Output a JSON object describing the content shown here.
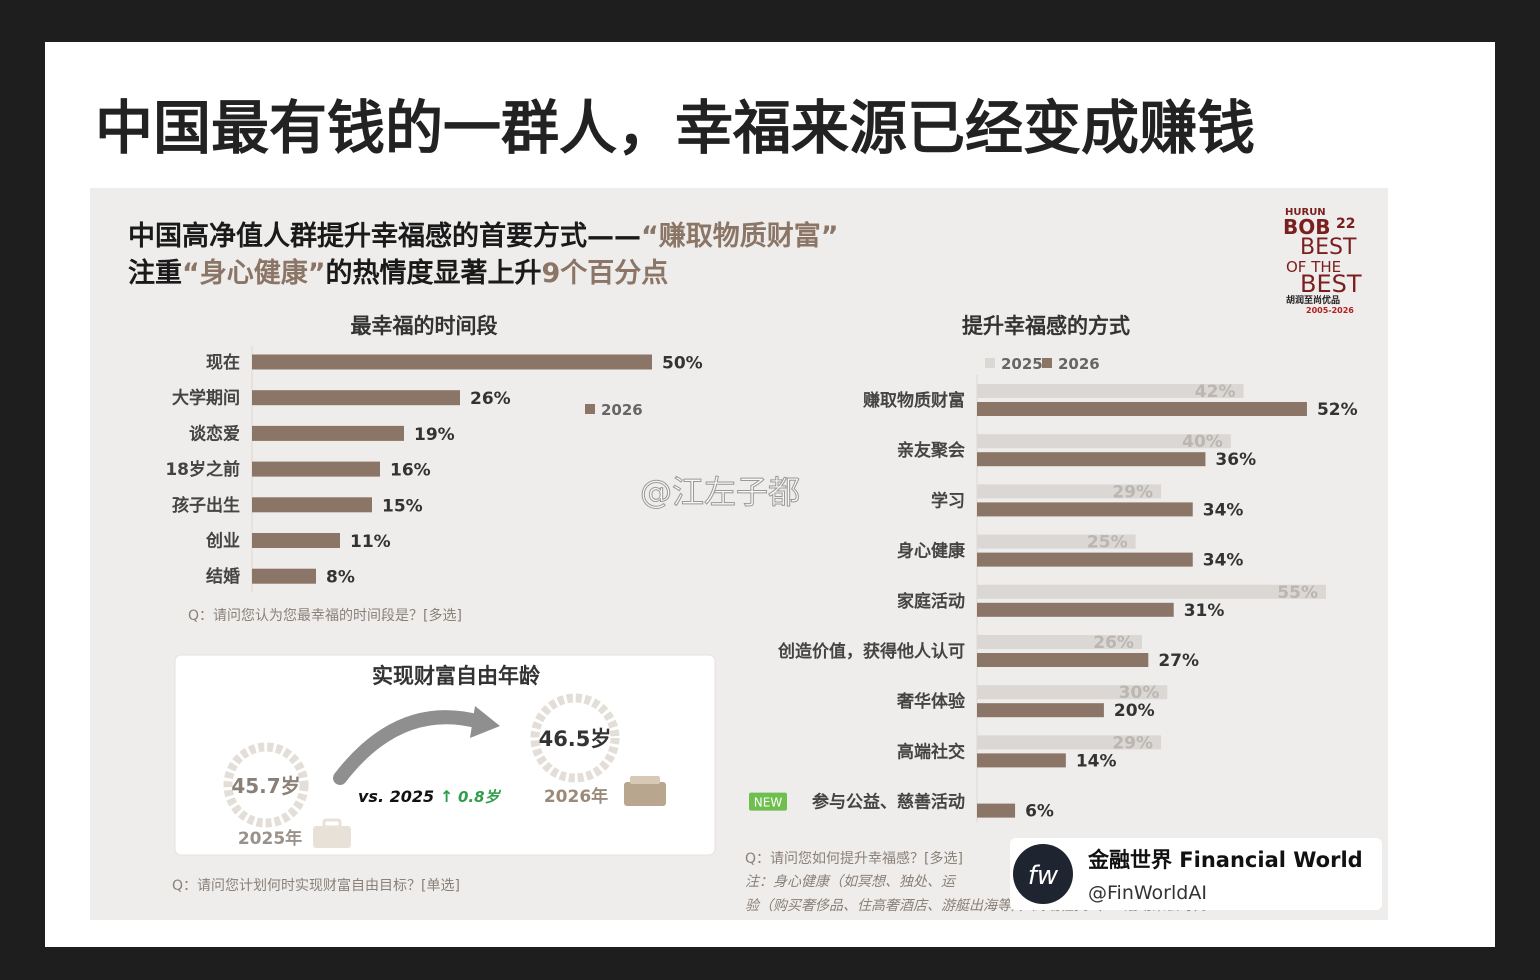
{
  "header": {
    "title": "中国最有钱的一群人，幸福来源已经变成赚钱"
  },
  "slide": {
    "headline_line1": [
      "中国高净值人群提升幸福感的首要方式——",
      "“赚取物质财富”"
    ],
    "headline_line2": [
      "注重",
      "“身心健康”",
      "的热情度显著上升",
      "9个百分点"
    ],
    "logo": [
      "HURUN",
      "BOB",
      "22",
      "BEST",
      "OF THE",
      "BEST",
      "胡润至尚优品",
      "2005-2026"
    ]
  },
  "chart_data": [
    {
      "type": "hbar",
      "title": "最幸福的时间段",
      "categories": [
        "现在",
        "大学期间",
        "谈恋爱",
        "18岁之前",
        "孩子出生",
        "创业",
        "结婚"
      ],
      "series": [
        {
          "name": "2026",
          "color": "#8b7566",
          "values": [
            50,
            26,
            19,
            16,
            15,
            11,
            8
          ],
          "value_labels": [
            "50%",
            "26%",
            "19%",
            "16%",
            "15%",
            "11%",
            "8%"
          ]
        }
      ],
      "xlim": [
        0,
        50
      ],
      "note": "Q：请问您认为您最幸福的时间段是？[多选]"
    },
    {
      "type": "hbar",
      "title": "提升幸福感的方式",
      "categories": [
        "赚取物质财富",
        "亲友聚会",
        "学习",
        "身心健康",
        "家庭活动",
        "创造价值，获得他人认可",
        "奢华体验",
        "高端社交",
        "参与公益、慈善活动"
      ],
      "badge": "NEW",
      "series": [
        {
          "name": "2025",
          "color": "#dad7d4",
          "values": [
            42,
            40,
            29,
            25,
            55,
            26,
            30,
            29,
            null
          ],
          "value_labels": [
            "42%",
            "40%",
            "29%",
            "25%",
            "55%",
            "26%",
            "30%",
            "29%",
            null
          ]
        },
        {
          "name": "2026",
          "color": "#8b7566",
          "values": [
            52,
            36,
            34,
            34,
            31,
            27,
            20,
            14,
            6
          ],
          "value_labels": [
            "52%",
            "36%",
            "34%",
            "34%",
            "31%",
            "27%",
            "20%",
            "14%",
            "6%"
          ]
        }
      ],
      "xlim": [
        0,
        55
      ],
      "note": [
        "Q：请问您如何提升幸福感？[多选]",
        "注：身心健康（如冥想、独处、运",
        "验（购买奢侈品、住高奢酒店、游艇出海等），高端社交（VIP活动聚会等）。"
      ]
    }
  ],
  "wealth_age": {
    "title": "实现财富自由年龄",
    "age_2025": "45.7岁",
    "year_2025": "2025年",
    "compare": "vs. 2025",
    "arrow": "↑",
    "delta": "0.8岁",
    "age_2026": "46.5岁",
    "year_2026": "2026年",
    "note": "Q：请问您计划何时实现财富自由目标？[单选]"
  },
  "watermark": "@江左子都",
  "footer": {
    "logo": "fw",
    "name": "金融世界 Financial World",
    "handle": "@FinWorldAI"
  }
}
